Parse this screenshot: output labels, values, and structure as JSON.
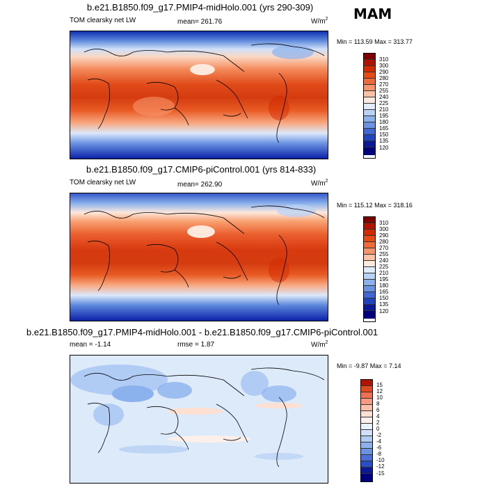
{
  "season": "MAM",
  "panels": [
    {
      "title": "b.e21.B1850.f09_g17.PMIP4-midHolo.001 (yrs 290-309)",
      "variable": "TOM clearsky net LW",
      "stat_text": "mean= 261.76",
      "units": "W/m",
      "units_sup": "2",
      "minmax": "Min = 113.59 Max = 313.77",
      "colorbar_labels": [
        "310",
        "300",
        "290",
        "280",
        "270",
        "255",
        "240",
        "225",
        "210",
        "195",
        "180",
        "165",
        "150",
        "135",
        "120"
      ]
    },
    {
      "title": "b.e21.B1850.f09_g17.CMIP6-piControl.001 (yrs 814-833)",
      "variable": "TOM clearsky net LW",
      "stat_text": "mean= 262.90",
      "units": "W/m",
      "units_sup": "2",
      "minmax": "Min = 115.12 Max = 318.16",
      "colorbar_labels": [
        "310",
        "300",
        "290",
        "280",
        "270",
        "255",
        "240",
        "225",
        "210",
        "195",
        "180",
        "165",
        "150",
        "135",
        "120"
      ]
    },
    {
      "title": "b.e21.B1850.f09_g17.PMIP4-midHolo.001 - b.e21.B1850.f09_g17.CMIP6-piControl.001",
      "variable": "mean =  -1.14",
      "stat_text": "rmse =   1.87",
      "units": "W/m",
      "units_sup": "2",
      "minmax": "Min =  -9.87 Max =   7.14",
      "colorbar_labels": [
        "15",
        "12",
        "10",
        "8",
        "6",
        "4",
        "2",
        "0",
        "-2",
        "-4",
        "-6",
        "-8",
        "-10",
        "-12",
        "-15"
      ]
    }
  ],
  "colors": {
    "abs_scale": [
      "#7f0000",
      "#b01400",
      "#d42a00",
      "#e84a14",
      "#f06a3a",
      "#f8956a",
      "#fcc2a4",
      "#fde8dc",
      "#e0ecfb",
      "#b8d2f6",
      "#8cb2ee",
      "#6a93e2",
      "#3f68d4",
      "#1f44c0",
      "#0a1a96",
      "#00007f"
    ],
    "diff_scale": [
      "#b01400",
      "#e04a1c",
      "#f07050",
      "#f89a80",
      "#fcc0a8",
      "#fde0d2",
      "#fdf0ea",
      "#eaf2fd",
      "#d0e2fa",
      "#b0ccf4",
      "#8cb2ee",
      "#6a93e2",
      "#4a70d6",
      "#2a4cc4",
      "#0a1a96",
      "#00007f"
    ]
  }
}
